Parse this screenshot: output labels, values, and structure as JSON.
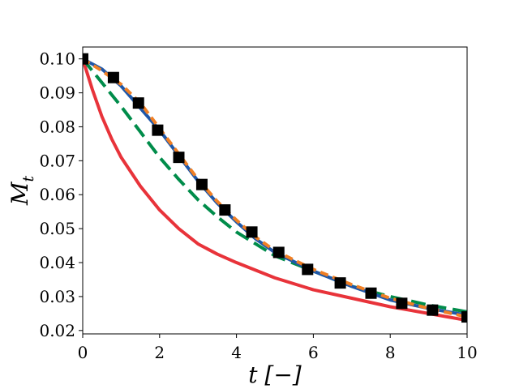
{
  "chart_data": {
    "type": "line",
    "xlabel": "t [−]",
    "ylabel": "M_t",
    "xlim": [
      0,
      10
    ],
    "ylim": [
      0.019,
      0.1035
    ],
    "xticks": [
      "0",
      "2",
      "4",
      "6",
      "8",
      "10"
    ],
    "yticks": [
      "0.02",
      "0.03",
      "0.04",
      "0.05",
      "0.06",
      "0.07",
      "0.08",
      "0.09",
      "0.10"
    ],
    "grid": false,
    "legend": "none",
    "series": [
      {
        "style": "squares",
        "color": "#000000",
        "x": [
          0.0,
          0.8,
          1.45,
          1.95,
          2.5,
          3.1,
          3.7,
          4.4,
          5.1,
          5.85,
          6.7,
          7.5,
          8.3,
          9.1,
          10.0
        ],
        "y": [
          0.1,
          0.0945,
          0.087,
          0.079,
          0.071,
          0.063,
          0.0555,
          0.049,
          0.043,
          0.038,
          0.034,
          0.031,
          0.028,
          0.026,
          0.024
        ]
      },
      {
        "style": "solid",
        "color": "#e8333a",
        "x": [
          0.0,
          0.25,
          0.5,
          0.75,
          1.0,
          1.5,
          2.0,
          2.5,
          3.0,
          3.5,
          4.0,
          5.0,
          6.0,
          7.0,
          8.0,
          9.0,
          10.0
        ],
        "y": [
          0.1,
          0.091,
          0.083,
          0.0765,
          0.071,
          0.0625,
          0.0555,
          0.05,
          0.0455,
          0.0425,
          0.04,
          0.0355,
          0.032,
          0.0295,
          0.027,
          0.025,
          0.023
        ]
      },
      {
        "style": "dash-long",
        "color": "#008c4a",
        "x": [
          0.0,
          0.5,
          1.0,
          1.5,
          2.0,
          2.5,
          3.0,
          3.5,
          4.0,
          4.5,
          5.0,
          6.0,
          7.0,
          8.0,
          9.0,
          10.0
        ],
        "y": [
          0.1,
          0.093,
          0.086,
          0.0785,
          0.071,
          0.0645,
          0.0585,
          0.0535,
          0.049,
          0.0455,
          0.042,
          0.0375,
          0.033,
          0.03,
          0.0275,
          0.0255
        ]
      },
      {
        "style": "solid",
        "color": "#1f57a8",
        "x": [
          0.0,
          0.5,
          1.0,
          1.5,
          2.0,
          2.5,
          3.0,
          3.5,
          4.0,
          4.5,
          5.0,
          6.0,
          7.0,
          8.0,
          9.0,
          10.0
        ],
        "y": [
          0.1,
          0.097,
          0.092,
          0.0855,
          0.079,
          0.0715,
          0.064,
          0.0575,
          0.052,
          0.047,
          0.043,
          0.0375,
          0.033,
          0.029,
          0.0265,
          0.0245
        ]
      },
      {
        "style": "dash-short",
        "color": "#f07f24",
        "x": [
          0.0,
          0.5,
          1.0,
          1.5,
          2.0,
          2.5,
          3.0,
          3.5,
          4.0,
          4.5,
          5.0,
          6.0,
          7.0,
          8.0,
          9.0,
          10.0
        ],
        "y": [
          0.1,
          0.0965,
          0.0925,
          0.087,
          0.0795,
          0.072,
          0.0645,
          0.058,
          0.0525,
          0.0475,
          0.0435,
          0.038,
          0.0335,
          0.0295,
          0.0265,
          0.024
        ]
      }
    ]
  }
}
